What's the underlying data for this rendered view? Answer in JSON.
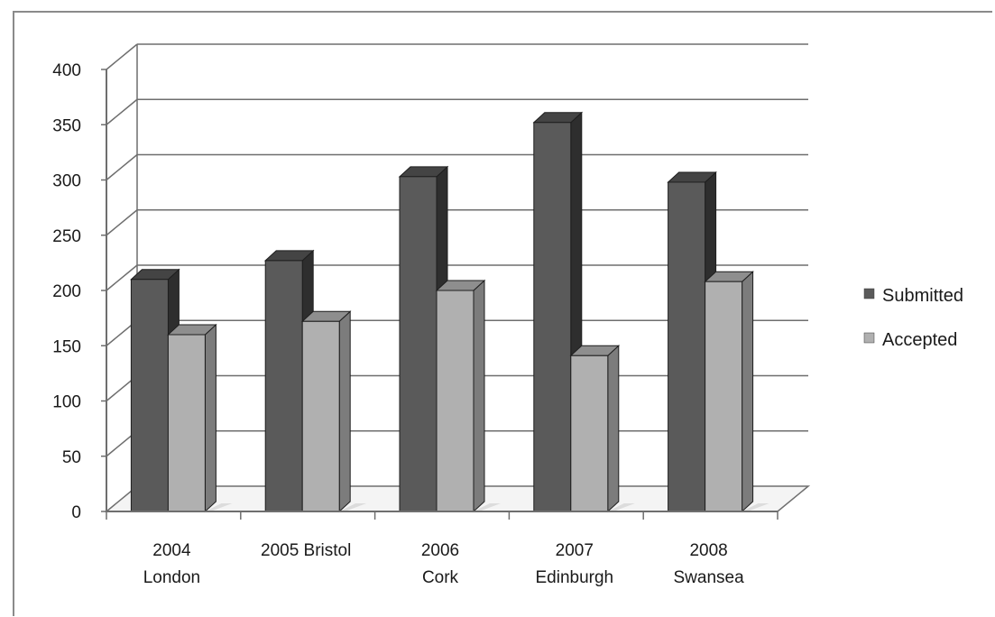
{
  "chart_data": {
    "type": "bar",
    "title": "",
    "xlabel": "",
    "ylabel": "",
    "ylim": [
      0,
      400
    ],
    "yticks": [
      0,
      50,
      100,
      150,
      200,
      250,
      300,
      350,
      400
    ],
    "categories": [
      [
        "2004",
        "London"
      ],
      [
        "2005 Bristol"
      ],
      [
        "2006",
        "Cork"
      ],
      [
        "2007",
        "Edinburgh"
      ],
      [
        "2008",
        "Swansea"
      ]
    ],
    "series": [
      {
        "name": "Submitted",
        "values": [
          210,
          227,
          303,
          352,
          298
        ],
        "color": "#5a5a5a",
        "side_color": "#2e2e2e",
        "top_color": "#444444"
      },
      {
        "name": "Accepted",
        "values": [
          160,
          172,
          200,
          141,
          208
        ],
        "color": "#b0b0b0",
        "side_color": "#7c7c7c",
        "top_color": "#8e8e8e"
      }
    ],
    "grid": true,
    "legend_position": "right",
    "style": "3d-clustered-column"
  }
}
